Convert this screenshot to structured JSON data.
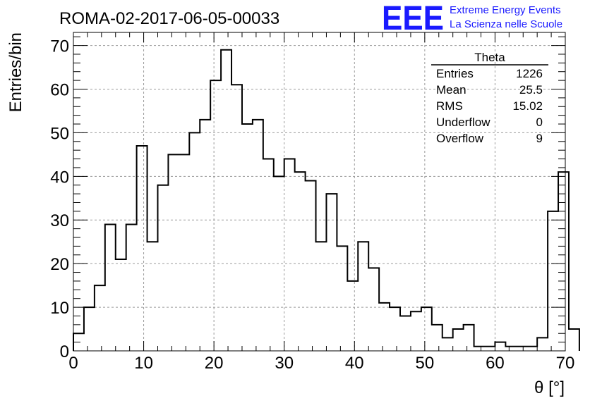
{
  "chart_data": {
    "type": "histogram",
    "title": "ROMA-02-2017-06-05-00033",
    "xlabel": "θ [°]",
    "ylabel": "Entries/bin",
    "xlim": [
      0,
      70
    ],
    "ylim": [
      0,
      73
    ],
    "x_ticks": [
      0,
      10,
      20,
      30,
      40,
      50,
      60,
      70
    ],
    "y_ticks": [
      0,
      10,
      20,
      30,
      40,
      50,
      60,
      70
    ],
    "grid": true,
    "bin_width": 1.5,
    "bin_start": 0,
    "values": [
      4,
      10,
      15,
      29,
      21,
      29,
      47,
      25,
      38,
      45,
      45,
      50,
      53,
      62,
      69,
      61,
      52,
      53,
      44,
      40,
      44,
      41,
      39,
      25,
      36,
      24,
      16,
      25,
      19,
      11,
      10,
      8,
      9,
      10,
      6,
      3,
      5,
      6,
      1,
      1,
      2,
      1,
      1,
      1,
      3,
      32,
      41,
      5
    ]
  },
  "stats_box": {
    "title": "Theta",
    "rows": [
      {
        "label": "Entries",
        "value": "1226"
      },
      {
        "label": "Mean",
        "value": "25.5"
      },
      {
        "label": "RMS",
        "value": "15.02"
      },
      {
        "label": "Underflow",
        "value": "0"
      },
      {
        "label": "Overflow",
        "value": "9"
      }
    ]
  },
  "logo": {
    "mark": "EEE",
    "line1": "Extreme Energy Events",
    "line2": "La Scienza nelle Scuole",
    "color": "#1a1aff"
  }
}
